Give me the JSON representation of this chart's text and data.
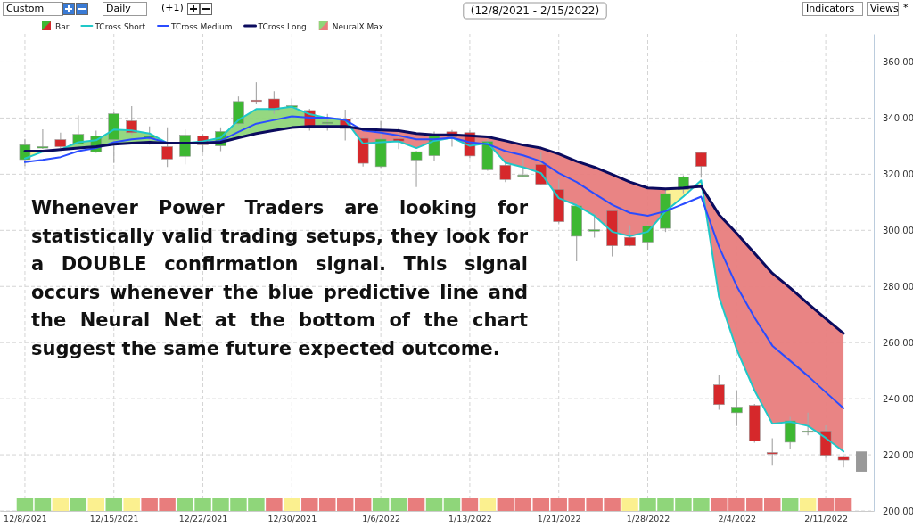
{
  "chart_data": {
    "type": "candlestick",
    "title": "(12/8/2021 - 2/15/2022)",
    "annotations": [
      "Whenever Power Traders are looking for statistically valid trading setups, they look for a DOUBLE confirmation signal. This signal occurs whenever the blue predictive line and the Neural Net at the bottom of the chart suggest the same future expected outcome.",
      "Custom",
      "Daily",
      "(+1)",
      "Indicators",
      "Views",
      "*"
    ],
    "categories": [
      "12/8/2021",
      null,
      null,
      null,
      null,
      "12/15/2021",
      null,
      null,
      null,
      null,
      "12/22/2021",
      null,
      null,
      null,
      null,
      "12/30/2021",
      null,
      null,
      null,
      null,
      "1/6/2022",
      null,
      null,
      null,
      null,
      "1/13/2022",
      null,
      null,
      null,
      null,
      "1/21/2022",
      null,
      null,
      null,
      null,
      "1/28/2022",
      null,
      null,
      null,
      null,
      "2/4/2022",
      null,
      null,
      null,
      null,
      "2/11/2022",
      null,
      null
    ],
    "series": [
      {
        "name": "Bar",
        "ohlc": [
          [
            325.2,
            332.6,
            322.9,
            330.5
          ],
          [
            329.5,
            336,
            329,
            329.8
          ],
          [
            332.3,
            334.8,
            329.3,
            329.8
          ],
          [
            330.8,
            341,
            330.5,
            334.2
          ],
          [
            328,
            335.5,
            327.6,
            333.6
          ],
          [
            332.3,
            342,
            324,
            341.5
          ],
          [
            339,
            344.3,
            334,
            334.8
          ],
          [
            333,
            337,
            330.5,
            333.6
          ],
          [
            329.8,
            336.7,
            322.6,
            325.4
          ],
          [
            326.4,
            336,
            323.5,
            333.9
          ],
          [
            333.6,
            334.2,
            328,
            330.5
          ],
          [
            330.1,
            336.7,
            328.2,
            335.2
          ],
          [
            338,
            347.7,
            337.5,
            345.9
          ],
          [
            346.4,
            352.8,
            344.9,
            346
          ],
          [
            346.8,
            349.6,
            341.5,
            343
          ],
          [
            343.8,
            347,
            342.5,
            344.4
          ],
          [
            342.7,
            343.3,
            335.5,
            336.4
          ],
          [
            338.2,
            341.5,
            335.5,
            338.5
          ],
          [
            339.6,
            343,
            332,
            336.3
          ],
          [
            332.8,
            333.3,
            322.7,
            323.9
          ],
          [
            322.7,
            339,
            322.3,
            332.5
          ],
          [
            332.6,
            336.7,
            328.9,
            331.8
          ],
          [
            325.1,
            328.3,
            315.4,
            328
          ],
          [
            326.6,
            335.2,
            324.9,
            334.3
          ],
          [
            335.1,
            335.8,
            329.8,
            333.2
          ],
          [
            334.8,
            335.6,
            325.7,
            326.5
          ],
          [
            321.6,
            332.4,
            321.2,
            331.7
          ],
          [
            323.2,
            324.6,
            317.2,
            318.1
          ],
          [
            319.4,
            325.8,
            319.2,
            319.7
          ],
          [
            323.5,
            327.7,
            316.2,
            316.4
          ],
          [
            314.6,
            318.3,
            302.5,
            303.1
          ],
          [
            297.9,
            309.7,
            289,
            308.7
          ],
          [
            300,
            306,
            297.4,
            300.2
          ],
          [
            307,
            307.5,
            290.7,
            294.5
          ],
          [
            297.5,
            301.8,
            294.3,
            294.5
          ],
          [
            295.8,
            302,
            293.1,
            301.5
          ],
          [
            300.7,
            314.7,
            299.4,
            313.1
          ],
          [
            314.6,
            319.6,
            313.2,
            319
          ],
          [
            327.7,
            327.9,
            318.8,
            322.8
          ],
          [
            244.9,
            248.3,
            236.1,
            237.9
          ],
          [
            235,
            242.9,
            230.3,
            237
          ],
          [
            237.6,
            238.1,
            224.3,
            225
          ],
          [
            220.8,
            225.9,
            216.1,
            220.3
          ],
          [
            224.5,
            233.5,
            222.2,
            232.1
          ],
          [
            228.2,
            235,
            226.9,
            228.5
          ],
          [
            228.5,
            230.5,
            218.8,
            219.8
          ],
          [
            219.4,
            219.6,
            215.5,
            218.1
          ],
          null
        ],
        "colors": [
          "#3db832",
          "#3db832",
          "#d6282b",
          "#3db832",
          "#3db832",
          "#3db832",
          "#d6282b",
          "#3db832",
          "#d6282b",
          "#3db832",
          "#d6282b",
          "#3db832",
          "#3db832",
          "#d6282b",
          "#d6282b",
          "#3db832",
          "#d6282b",
          "#3db832",
          "#d6282b",
          "#d6282b",
          "#3db832",
          "#d6282b",
          "#3db832",
          "#3db832",
          "#d6282b",
          "#d6282b",
          "#3db832",
          "#d6282b",
          "#3db832",
          "#d6282b",
          "#d6282b",
          "#3db832",
          "#3db832",
          "#d6282b",
          "#d6282b",
          "#3db832",
          "#3db832",
          "#3db832",
          "#d6282b",
          "#d6282b",
          "#3db832",
          "#d6282b",
          "#d6282b",
          "#3db832",
          "#3db832",
          "#d6282b",
          "#d6282b",
          null
        ]
      },
      {
        "name": "TCross.Short",
        "type": "line",
        "color": "#1fc8c8",
        "values": [
          325.6,
          328,
          328.8,
          331.4,
          332.1,
          335.9,
          335.6,
          334.5,
          331.1,
          331.1,
          331.7,
          333,
          339.3,
          343.2,
          343.2,
          344,
          341.4,
          340,
          339.3,
          330.9,
          331.4,
          331.7,
          329.3,
          331.9,
          333,
          330.1,
          331.1,
          324.1,
          322.5,
          320.4,
          311.5,
          308.9,
          305.2,
          299.5,
          297.9,
          299.5,
          306.8,
          312,
          317.8,
          276.4,
          257.5,
          242.9,
          231.1,
          231.8,
          230.3,
          226,
          221.2,
          null
        ]
      },
      {
        "name": "TCross.Medium",
        "type": "line",
        "color": "#2a4cff",
        "values": [
          324.3,
          325.1,
          326.1,
          328.2,
          329.3,
          331.4,
          332.4,
          333,
          331.2,
          331.1,
          331.1,
          331.9,
          335.1,
          338,
          339.3,
          340.6,
          340.1,
          340.1,
          339.3,
          335.6,
          334.8,
          333.8,
          332.4,
          332.4,
          333,
          331.4,
          330.7,
          328.2,
          326.7,
          324.6,
          320.4,
          317.2,
          313.1,
          309.1,
          306.2,
          305.2,
          306.8,
          309.4,
          312,
          294.2,
          280.1,
          268.9,
          258.9,
          253.5,
          248.1,
          242.3,
          236.6,
          null
        ]
      },
      {
        "name": "TCross.Long",
        "type": "line",
        "color": "#0b0b5e",
        "values": [
          328.2,
          328.2,
          328.8,
          329.3,
          329.8,
          330.7,
          331.1,
          331.4,
          331.1,
          331.1,
          331.1,
          331.4,
          333,
          334.5,
          335.6,
          336.6,
          337,
          337,
          337,
          336.1,
          335.8,
          335.5,
          334.5,
          334,
          334,
          333.7,
          333.3,
          331.9,
          330.4,
          329.3,
          327.2,
          324.6,
          322.5,
          319.9,
          317.2,
          315.1,
          314.8,
          315.1,
          315.7,
          305.6,
          298.9,
          291.8,
          284.7,
          279.5,
          273.9,
          268.5,
          263.3,
          null
        ]
      },
      {
        "name": "NeuralX.Max",
        "type": "bar",
        "base": [
          200,
          200,
          200,
          200,
          200,
          200,
          200,
          200,
          200,
          200,
          200,
          200,
          200,
          200,
          200,
          200,
          200,
          200,
          200,
          200,
          200,
          200,
          200,
          200,
          200,
          200,
          200,
          200,
          200,
          200,
          200,
          200,
          200,
          200,
          200,
          200,
          200,
          200,
          200,
          200,
          200,
          200,
          200,
          200,
          200,
          200,
          200,
          null
        ],
        "values": [
          4.7,
          4.7,
          4.7,
          4.7,
          4.7,
          4.7,
          4.7,
          4.7,
          4.7,
          4.7,
          4.7,
          4.7,
          4.7,
          4.7,
          4.7,
          4.7,
          4.7,
          4.7,
          4.7,
          4.7,
          4.7,
          4.7,
          4.7,
          4.7,
          4.7,
          4.7,
          4.7,
          4.7,
          4.7,
          4.7,
          4.7,
          4.7,
          4.7,
          4.7,
          4.7,
          4.7,
          4.7,
          4.7,
          4.7,
          4.7,
          4.7,
          4.7,
          4.7,
          4.7,
          4.7,
          4.7,
          4.7,
          null
        ],
        "colors": [
          "#8fd67a",
          "#8fd67a",
          "#fbf08f",
          "#8fd67a",
          "#fbf08f",
          "#8fd67a",
          "#fbf08f",
          "#e87d7d",
          "#e87d7d",
          "#8fd67a",
          "#8fd67a",
          "#8fd67a",
          "#8fd67a",
          "#8fd67a",
          "#e87d7d",
          "#fbf08f",
          "#e87d7d",
          "#e87d7d",
          "#e87d7d",
          "#e87d7d",
          "#8fd67a",
          "#8fd67a",
          "#e87d7d",
          "#8fd67a",
          "#8fd67a",
          "#e87d7d",
          "#fbf08f",
          "#e87d7d",
          "#e87d7d",
          "#e87d7d",
          "#e87d7d",
          "#e87d7d",
          "#e87d7d",
          "#e87d7d",
          "#fbf08f",
          "#8fd67a",
          "#8fd67a",
          "#8fd67a",
          "#8fd67a",
          "#e87d7d",
          "#e87d7d",
          "#e87d7d",
          "#e87d7d",
          "#8fd67a",
          "#fbf08f",
          "#e87d7d",
          "#e87d7d",
          null
        ]
      },
      {
        "type": "bar",
        "color": "#999999",
        "base": [
          null,
          null,
          null,
          null,
          null,
          null,
          null,
          null,
          null,
          null,
          null,
          null,
          null,
          null,
          null,
          null,
          null,
          null,
          null,
          null,
          null,
          null,
          null,
          null,
          null,
          null,
          null,
          null,
          null,
          null,
          null,
          null,
          null,
          null,
          null,
          null,
          null,
          null,
          null,
          null,
          null,
          null,
          null,
          null,
          null,
          null,
          null,
          214
        ],
        "values": [
          null,
          null,
          null,
          null,
          null,
          null,
          null,
          null,
          null,
          null,
          null,
          null,
          null,
          null,
          null,
          null,
          null,
          null,
          null,
          null,
          null,
          null,
          null,
          null,
          null,
          null,
          null,
          null,
          null,
          null,
          null,
          null,
          null,
          null,
          null,
          null,
          null,
          null,
          null,
          null,
          null,
          null,
          null,
          null,
          null,
          null,
          null,
          7.2
        ]
      }
    ],
    "ylim": [
      200,
      370
    ],
    "yticks": [
      {
        "value": 200,
        "label": "200.00"
      },
      {
        "value": 220,
        "label": "220.00"
      },
      {
        "value": 240,
        "label": "240.00"
      },
      {
        "value": 260,
        "label": "260.00"
      },
      {
        "value": 280,
        "label": "280.00"
      },
      {
        "value": 300,
        "label": "300.00"
      },
      {
        "value": 320,
        "label": "320.00"
      },
      {
        "value": 340,
        "label": "340.00"
      },
      {
        "value": 360,
        "label": "360.00"
      }
    ],
    "grid": true,
    "legend": "top left"
  }
}
